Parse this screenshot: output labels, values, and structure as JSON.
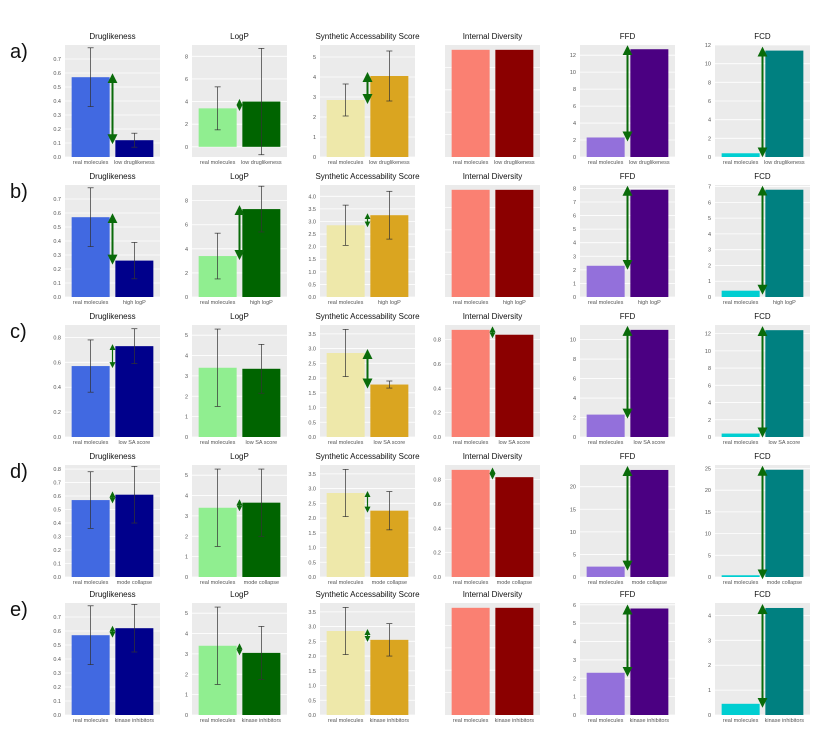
{
  "colors": {
    "panel_bg": "#ebebeb",
    "grid": "#ffffff",
    "arrow": "#0a6b0a",
    "error_bar": "#333333",
    "metric_colors": {
      "Druglikeness": [
        "#4169e1",
        "#00008b"
      ],
      "LogP": [
        "#90ee90",
        "#006400"
      ],
      "Synthetic Accessability Score": [
        "#eee8aa",
        "#daa520"
      ],
      "Internal Diversity": [
        "#fa8072",
        "#8b0000"
      ],
      "FFD": [
        "#9370db",
        "#4b0082"
      ],
      "FCD": [
        "#00ced1",
        "#008080"
      ]
    }
  },
  "chart_data": [
    {
      "row": "a)",
      "category": "low druglikeness",
      "panels": [
        {
          "type": "bar",
          "title": "Druglikeness",
          "categories": [
            "real molecules",
            "low druglikeness"
          ],
          "values": [
            0.57,
            0.12
          ],
          "errors": [
            0.21,
            0.05
          ],
          "ylim": [
            0,
            0.8
          ],
          "yticks": [
            0.0,
            0.1,
            0.2,
            0.3,
            0.4,
            0.5,
            0.6,
            0.7
          ],
          "arrow": true
        },
        {
          "type": "bar",
          "title": "LogP",
          "categories": [
            "real molecules",
            "low druglikeness"
          ],
          "values": [
            3.4,
            4.0
          ],
          "errors": [
            1.9,
            4.7
          ],
          "ylim": [
            -0.9,
            9
          ],
          "yticks": [
            0,
            2,
            4,
            6,
            8
          ],
          "arrow": true
        },
        {
          "type": "bar",
          "title": "Synthetic Accessability Score",
          "categories": [
            "real molecules",
            "low druglikeness"
          ],
          "values": [
            2.85,
            4.05
          ],
          "errors": [
            0.8,
            1.25
          ],
          "ylim": [
            0,
            5.6
          ],
          "yticks": [
            0,
            1,
            2,
            3,
            4,
            5
          ],
          "arrow": true
        },
        {
          "type": "bar",
          "title": "Internal Diversity",
          "categories": [
            "real molecules",
            "low druglikeness"
          ],
          "values": [
            0.89,
            0.89
          ],
          "errors": null,
          "ylim": [
            0,
            0.93
          ],
          "yticks": [],
          "arrow": false
        },
        {
          "type": "bar",
          "title": "FFD",
          "categories": [
            "real molecules",
            "low druglikeness"
          ],
          "values": [
            2.3,
            12.7
          ],
          "errors": null,
          "ylim": [
            0,
            13.2
          ],
          "yticks": [
            0,
            2,
            4,
            6,
            8,
            10,
            12
          ],
          "arrow": true
        },
        {
          "type": "bar",
          "title": "FCD",
          "categories": [
            "real molecules",
            "low druglikeness"
          ],
          "values": [
            0.4,
            11.4
          ],
          "errors": null,
          "ylim": [
            0,
            12
          ],
          "yticks": [
            0,
            2,
            4,
            6,
            8,
            10,
            12
          ],
          "arrow": true
        }
      ]
    },
    {
      "row": "b)",
      "category": "high logP",
      "panels": [
        {
          "type": "bar",
          "title": "Druglikeness",
          "categories": [
            "real molecules",
            "high logP"
          ],
          "values": [
            0.57,
            0.26
          ],
          "errors": [
            0.21,
            0.13
          ],
          "ylim": [
            0,
            0.8
          ],
          "yticks": [
            0.0,
            0.1,
            0.2,
            0.3,
            0.4,
            0.5,
            0.6,
            0.7
          ],
          "arrow": true
        },
        {
          "type": "bar",
          "title": "LogP",
          "categories": [
            "real molecules",
            "high logP"
          ],
          "values": [
            3.4,
            7.3
          ],
          "errors": [
            1.9,
            1.9
          ],
          "ylim": [
            0,
            9.3
          ],
          "yticks": [
            0,
            2,
            4,
            6,
            8
          ],
          "arrow": true
        },
        {
          "type": "bar",
          "title": "Synthetic Accessability Score",
          "categories": [
            "real molecules",
            "high logP"
          ],
          "values": [
            2.85,
            3.25
          ],
          "errors": [
            0.8,
            0.95
          ],
          "ylim": [
            0,
            4.45
          ],
          "yticks": [
            0.0,
            0.5,
            1.0,
            1.5,
            2.0,
            2.5,
            3.0,
            3.5,
            4.0
          ],
          "arrow": true
        },
        {
          "type": "bar",
          "title": "Internal Diversity",
          "categories": [
            "real molecules",
            "high logP"
          ],
          "values": [
            0.89,
            0.89
          ],
          "errors": null,
          "ylim": [
            0,
            0.93
          ],
          "yticks": [],
          "arrow": false
        },
        {
          "type": "bar",
          "title": "FFD",
          "categories": [
            "real molecules",
            "high logP"
          ],
          "values": [
            2.3,
            7.9
          ],
          "errors": null,
          "ylim": [
            0,
            8.25
          ],
          "yticks": [
            0,
            1,
            2,
            3,
            4,
            5,
            6,
            7,
            8
          ],
          "arrow": true
        },
        {
          "type": "bar",
          "title": "FCD",
          "categories": [
            "real molecules",
            "high logP"
          ],
          "values": [
            0.4,
            6.8
          ],
          "errors": null,
          "ylim": [
            0,
            7.1
          ],
          "yticks": [
            0,
            1,
            2,
            3,
            4,
            5,
            6,
            7
          ],
          "arrow": true
        }
      ]
    },
    {
      "row": "c)",
      "category": "low SA score",
      "panels": [
        {
          "type": "bar",
          "title": "Druglikeness",
          "categories": [
            "real molecules",
            "low SA score"
          ],
          "values": [
            0.57,
            0.73
          ],
          "errors": [
            0.21,
            0.14
          ],
          "ylim": [
            0,
            0.9
          ],
          "yticks": [
            0.0,
            0.2,
            0.4,
            0.6,
            0.8
          ],
          "arrow": true
        },
        {
          "type": "bar",
          "title": "LogP",
          "categories": [
            "real molecules",
            "low SA score"
          ],
          "values": [
            3.4,
            3.35
          ],
          "errors": [
            1.9,
            1.2
          ],
          "ylim": [
            0,
            5.5
          ],
          "yticks": [
            0,
            1,
            2,
            3,
            4,
            5
          ],
          "arrow": false
        },
        {
          "type": "bar",
          "title": "Synthetic Accessability Score",
          "categories": [
            "real molecules",
            "low SA score"
          ],
          "values": [
            2.85,
            1.78
          ],
          "errors": [
            0.8,
            0.12
          ],
          "ylim": [
            0,
            3.8
          ],
          "yticks": [
            0.0,
            0.5,
            1.0,
            1.5,
            2.0,
            2.5,
            3.0,
            3.5
          ],
          "arrow": true
        },
        {
          "type": "bar",
          "title": "Internal Diversity",
          "categories": [
            "real molecules",
            "low SA score"
          ],
          "values": [
            0.88,
            0.84
          ],
          "errors": null,
          "ylim": [
            0,
            0.92
          ],
          "yticks": [
            0.0,
            0.2,
            0.4,
            0.6,
            0.8
          ],
          "arrow": true
        },
        {
          "type": "bar",
          "title": "FFD",
          "categories": [
            "real molecules",
            "low SA score"
          ],
          "values": [
            2.3,
            11.0
          ],
          "errors": null,
          "ylim": [
            0,
            11.5
          ],
          "yticks": [
            0,
            2,
            4,
            6,
            8,
            10
          ],
          "arrow": true
        },
        {
          "type": "bar",
          "title": "FCD",
          "categories": [
            "real molecules",
            "low SA score"
          ],
          "values": [
            0.4,
            12.4
          ],
          "errors": null,
          "ylim": [
            0,
            13
          ],
          "yticks": [
            0,
            2,
            4,
            6,
            8,
            10,
            12
          ],
          "arrow": true
        }
      ]
    },
    {
      "row": "d)",
      "category": "mode collapse",
      "panels": [
        {
          "type": "bar",
          "title": "Druglikeness",
          "categories": [
            "real molecules",
            "mode collapse"
          ],
          "values": [
            0.57,
            0.61
          ],
          "errors": [
            0.21,
            0.21
          ],
          "ylim": [
            0,
            0.83
          ],
          "yticks": [
            0.0,
            0.1,
            0.2,
            0.3,
            0.4,
            0.5,
            0.6,
            0.7,
            0.8
          ],
          "arrow": true
        },
        {
          "type": "bar",
          "title": "LogP",
          "categories": [
            "real molecules",
            "mode collapse"
          ],
          "values": [
            3.4,
            3.65
          ],
          "errors": [
            1.9,
            1.65
          ],
          "ylim": [
            0,
            5.5
          ],
          "yticks": [
            0,
            1,
            2,
            3,
            4,
            5
          ],
          "arrow": true
        },
        {
          "type": "bar",
          "title": "Synthetic Accessability Score",
          "categories": [
            "real molecules",
            "mode collapse"
          ],
          "values": [
            2.85,
            2.25
          ],
          "errors": [
            0.8,
            0.65
          ],
          "ylim": [
            0,
            3.8
          ],
          "yticks": [
            0.0,
            0.5,
            1.0,
            1.5,
            2.0,
            2.5,
            3.0,
            3.5
          ],
          "arrow": true
        },
        {
          "type": "bar",
          "title": "Internal Diversity",
          "categories": [
            "real molecules",
            "mode collapse"
          ],
          "values": [
            0.88,
            0.82
          ],
          "errors": null,
          "ylim": [
            0,
            0.92
          ],
          "yticks": [
            0.0,
            0.2,
            0.4,
            0.6,
            0.8
          ],
          "arrow": true
        },
        {
          "type": "bar",
          "title": "FFD",
          "categories": [
            "real molecules",
            "mode collapse"
          ],
          "values": [
            2.3,
            23.7
          ],
          "errors": null,
          "ylim": [
            0,
            24.8
          ],
          "yticks": [
            0,
            5,
            10,
            15,
            20
          ],
          "arrow": true
        },
        {
          "type": "bar",
          "title": "FCD",
          "categories": [
            "real molecules",
            "mode collapse"
          ],
          "values": [
            0.4,
            24.7
          ],
          "errors": null,
          "ylim": [
            0,
            25.8
          ],
          "yticks": [
            0,
            5,
            10,
            15,
            20,
            25
          ],
          "arrow": true
        }
      ]
    },
    {
      "row": "e)",
      "category": "kinase inhibitors",
      "panels": [
        {
          "type": "bar",
          "title": "Druglikeness",
          "categories": [
            "real molecules",
            "kinase inhibitors"
          ],
          "values": [
            0.57,
            0.62
          ],
          "errors": [
            0.21,
            0.17
          ],
          "ylim": [
            0,
            0.8
          ],
          "yticks": [
            0.0,
            0.1,
            0.2,
            0.3,
            0.4,
            0.5,
            0.6,
            0.7
          ],
          "arrow": true
        },
        {
          "type": "bar",
          "title": "LogP",
          "categories": [
            "real molecules",
            "kinase inhibitors"
          ],
          "values": [
            3.4,
            3.05
          ],
          "errors": [
            1.9,
            1.3
          ],
          "ylim": [
            0,
            5.5
          ],
          "yticks": [
            0,
            1,
            2,
            3,
            4,
            5
          ],
          "arrow": true
        },
        {
          "type": "bar",
          "title": "Synthetic Accessability Score",
          "categories": [
            "real molecules",
            "kinase inhibitors"
          ],
          "values": [
            2.85,
            2.55
          ],
          "errors": [
            0.8,
            0.55
          ],
          "ylim": [
            0,
            3.8
          ],
          "yticks": [
            0.0,
            0.5,
            1.0,
            1.5,
            2.0,
            2.5,
            3.0,
            3.5
          ],
          "arrow": true
        },
        {
          "type": "bar",
          "title": "Internal Diversity",
          "categories": [
            "real molecules",
            "kinase inhibitors"
          ],
          "values": [
            0.89,
            0.89
          ],
          "errors": null,
          "ylim": [
            0,
            0.93
          ],
          "yticks": [],
          "arrow": false
        },
        {
          "type": "bar",
          "title": "FFD",
          "categories": [
            "real molecules",
            "kinase inhibitors"
          ],
          "values": [
            2.3,
            5.8
          ],
          "errors": null,
          "ylim": [
            0,
            6.1
          ],
          "yticks": [
            0,
            1,
            2,
            3,
            4,
            5,
            6
          ],
          "arrow": true
        },
        {
          "type": "bar",
          "title": "FCD",
          "categories": [
            "real molecules",
            "kinase inhibitors"
          ],
          "values": [
            0.45,
            4.3
          ],
          "errors": null,
          "ylim": [
            0,
            4.5
          ],
          "yticks": [
            0,
            1,
            2,
            3,
            4
          ],
          "arrow": true
        }
      ]
    }
  ]
}
